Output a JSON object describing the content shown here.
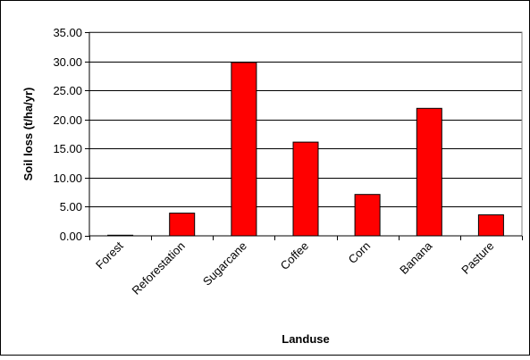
{
  "chart_data": {
    "type": "bar",
    "categories": [
      "Forest",
      "Reforestation",
      "Sugarcane",
      "Coffee",
      "Corn",
      "Banana",
      "Pasture"
    ],
    "values": [
      0.1,
      3.9,
      29.8,
      16.1,
      7.1,
      21.9,
      3.6
    ],
    "title": "",
    "xlabel": "Landuse",
    "ylabel": "Soil loss (t/ha/yr)",
    "ylim": [
      0,
      35
    ],
    "yticks": [
      "0.00",
      "5.00",
      "10.00",
      "15.00",
      "20.00",
      "25.00",
      "30.00",
      "35.00"
    ],
    "grid": "horizontal major gridlines",
    "legend": "none",
    "colors": {
      "bar_fill": "#ff0000",
      "bar_stroke": "#000000",
      "gridline": "#000000",
      "plot_border": "#808080",
      "frame_border": "#000000"
    }
  }
}
